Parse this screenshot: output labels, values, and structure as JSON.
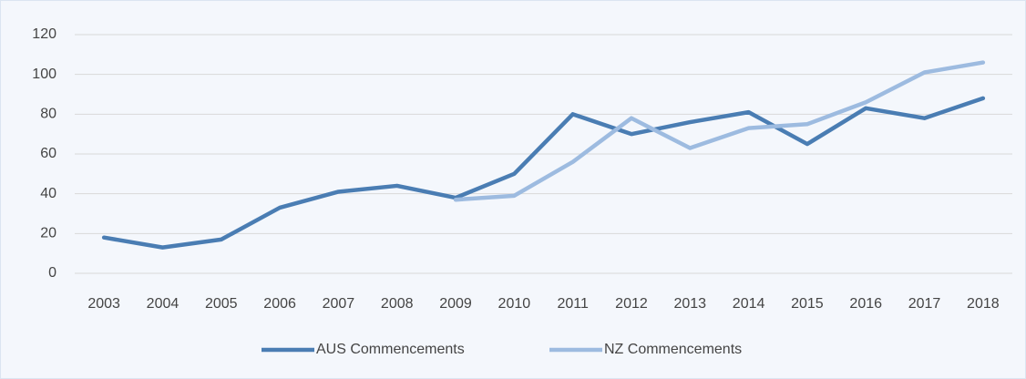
{
  "chart_data": {
    "type": "line",
    "categories": [
      "2003",
      "2004",
      "2005",
      "2006",
      "2007",
      "2008",
      "2009",
      "2010",
      "2011",
      "2012",
      "2013",
      "2014",
      "2015",
      "2016",
      "2017",
      "2018"
    ],
    "series": [
      {
        "name": "AUS Commencements",
        "color": "#4a7db3",
        "values": [
          18,
          13,
          17,
          33,
          41,
          44,
          38,
          50,
          80,
          70,
          76,
          81,
          65,
          83,
          78,
          88
        ]
      },
      {
        "name": "NZ Commencements",
        "color": "#9dbbe0",
        "values": [
          null,
          null,
          null,
          null,
          null,
          null,
          37,
          39,
          56,
          78,
          63,
          73,
          75,
          86,
          101,
          106
        ]
      }
    ],
    "ylim": [
      0,
      120
    ],
    "yticks": [
      0,
      20,
      40,
      60,
      80,
      100,
      120
    ],
    "grid": true,
    "legend": "bottom"
  }
}
